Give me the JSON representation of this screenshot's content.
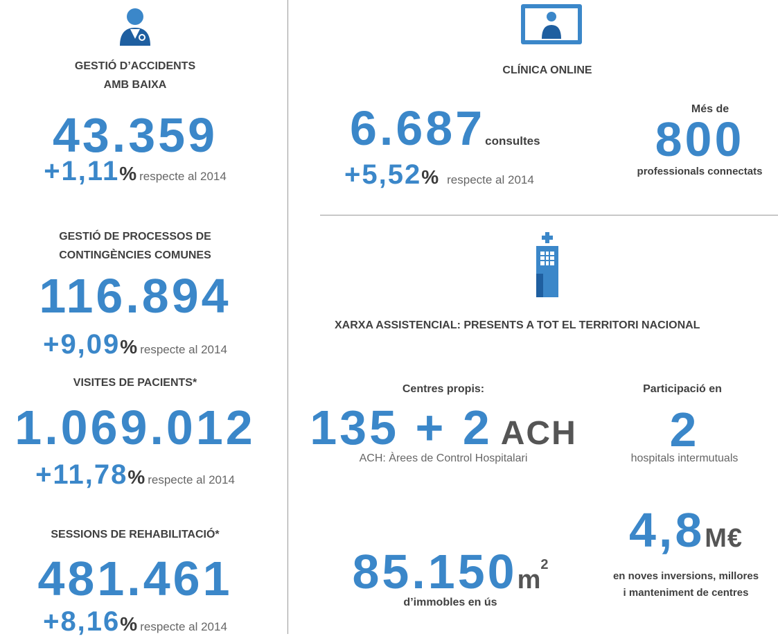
{
  "left": {
    "items": [
      {
        "title": [
          "GESTIÓ D’ACCIDENTS",
          "AMB BAIXA"
        ],
        "value": "43.359",
        "change": "+1,11",
        "unit": "%",
        "note": "respecte al 2014"
      },
      {
        "title": [
          "GESTIÓ DE PROCESSOS DE",
          "CONTINGÈNCIES COMUNES"
        ],
        "value": "116.894",
        "change": "+9,09",
        "unit": "%",
        "note": "respecte al 2014"
      },
      {
        "title": [
          "VISITES DE PACIENTS*"
        ],
        "value": "1.069.012",
        "change": "+11,78",
        "unit": "%",
        "note": "respecte al 2014"
      },
      {
        "title": [
          "SESSIONS DE REHABILITACIÓ*"
        ],
        "value": "481.461",
        "change": "+8,16",
        "unit": "%",
        "note": "respecte al 2014"
      }
    ]
  },
  "clinic": {
    "title": "CLÍNICA ONLINE",
    "consultations": {
      "value": "6.687",
      "unit": "consultes",
      "change": "+5,52",
      "change_unit": "%",
      "note": "respecte al 2014"
    },
    "professionals": {
      "pre": "Més de",
      "value": "800",
      "label": "professionals connectats"
    }
  },
  "network": {
    "title": "XARXA ASSISTENCIAL: PRESENTS A TOT EL TERRITORI NACIONAL",
    "centres": {
      "label": "Centres propis:",
      "value": "135 + 2",
      "unit": "ACH",
      "note": "ACH: Àrees de Control Hospitalari"
    },
    "participation": {
      "label": "Participació en",
      "value": "2",
      "note": "hospitals intermutuals"
    },
    "area": {
      "value": "85.150",
      "unit": "m",
      "sup": "2",
      "note": "d’immobles en ús"
    },
    "investment": {
      "value": "4,8",
      "unit": "M€",
      "note": [
        "en noves inversions, millores",
        "i manteniment de centres"
      ]
    }
  }
}
